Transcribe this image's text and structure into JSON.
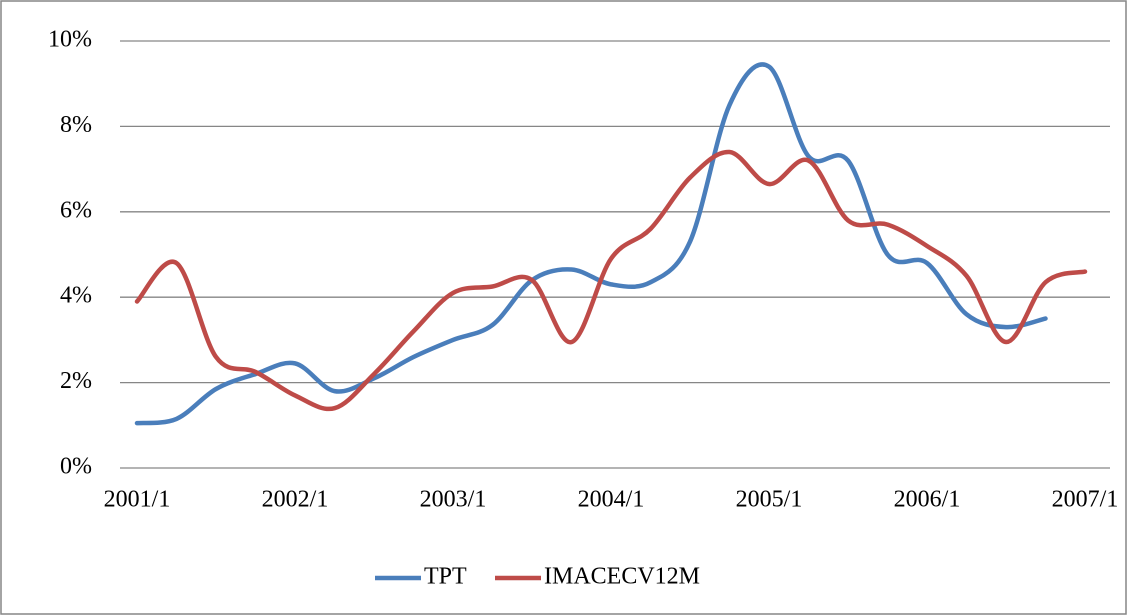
{
  "chart_data": {
    "type": "line",
    "categories": [
      "2001/1",
      null,
      null,
      null,
      "2002/1",
      null,
      null,
      null,
      "2003/1",
      null,
      null,
      null,
      "2004/1",
      null,
      null,
      null,
      "2005/1",
      null,
      null,
      null,
      "2006/1",
      null,
      null,
      null,
      "2007/1"
    ],
    "series": [
      {
        "name": "TPT",
        "color": "#4a7ebb",
        "values": [
          1.05,
          1.15,
          1.85,
          2.2,
          2.45,
          1.8,
          2.1,
          2.6,
          3.0,
          3.35,
          4.4,
          4.65,
          4.3,
          4.35,
          5.3,
          8.5,
          9.4,
          7.3,
          7.2,
          5.0,
          4.8,
          3.6,
          3.3,
          3.5,
          null
        ]
      },
      {
        "name": "IMACECV12M",
        "color": "#be4b48",
        "values": [
          3.9,
          4.8,
          2.6,
          2.25,
          1.7,
          1.4,
          2.2,
          3.2,
          4.1,
          4.25,
          4.4,
          2.95,
          4.9,
          5.6,
          6.8,
          7.4,
          6.65,
          7.2,
          5.8,
          5.7,
          5.2,
          4.5,
          2.95,
          4.35,
          4.6
        ]
      }
    ],
    "ylim": [
      0,
      10
    ],
    "yticks": [
      {
        "value": 0,
        "label": "0%"
      },
      {
        "value": 2,
        "label": "2%"
      },
      {
        "value": 4,
        "label": "4%"
      },
      {
        "value": 6,
        "label": "6%"
      },
      {
        "value": 8,
        "label": "8%"
      },
      {
        "value": 10,
        "label": "10%"
      }
    ],
    "grid": true,
    "smooth": true,
    "legend": "bottom"
  }
}
